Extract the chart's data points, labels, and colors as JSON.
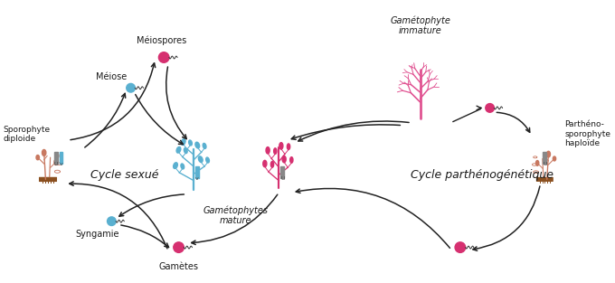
{
  "bg_color": "#ffffff",
  "text_color": "#1a1a1a",
  "salmon_color": "#c87860",
  "pink_color": "#d63070",
  "pink_light": "#e05090",
  "cyan_color": "#5ab0d0",
  "brown_color": "#8b5020",
  "gray_color": "#888888",
  "arrow_color": "#222222",
  "labels": {
    "sporophyte_diploide": "Sporophyte\ndiploide",
    "meiose": "Méiose",
    "meiospores": "Méiospores",
    "gametophyte_immature": "Gamétophyte\nimmature",
    "gametophytes_mature": "Gamétophytes\nmature",
    "syngamie": "Syngamie",
    "gametes": "Gamètes",
    "cycle_sexue": "Cycle sexué",
    "cycle_parthenogenetique": "Cycle parthénogénétique",
    "partheno_sporophyte": "Parthéno-\nsporophyte\nhaploẗde"
  },
  "figsize": [
    6.8,
    3.13
  ],
  "dpi": 100
}
